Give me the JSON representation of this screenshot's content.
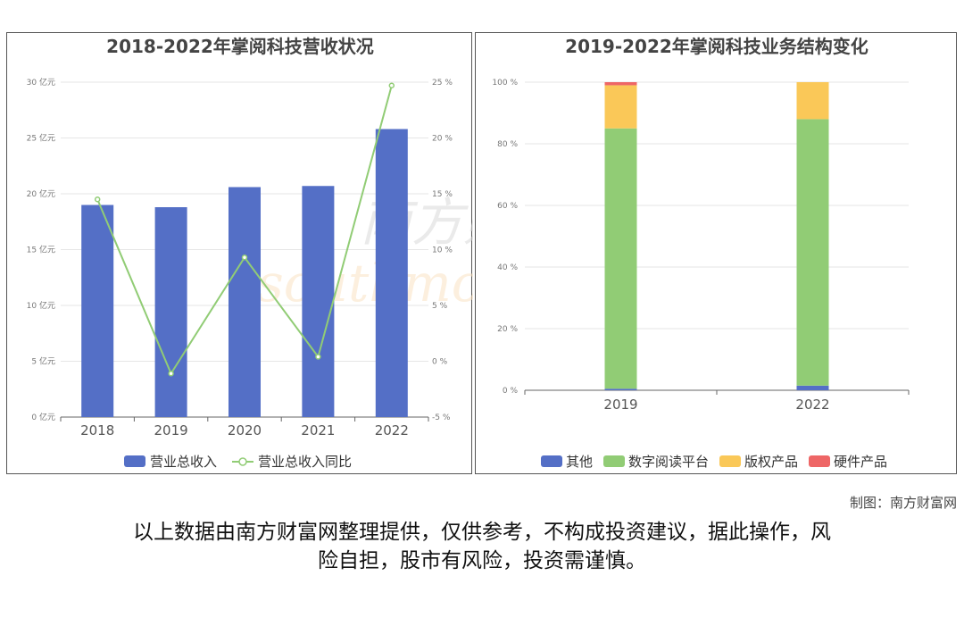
{
  "chart_data": [
    {
      "type": "bar+line",
      "title": "2018-2022年掌阅科技营收状况",
      "categories": [
        "2018",
        "2019",
        "2020",
        "2021",
        "2022"
      ],
      "series": [
        {
          "name": "营业总收入",
          "type": "bar",
          "axis": "left",
          "unit": "亿元",
          "values": [
            19.0,
            18.8,
            20.6,
            20.7,
            25.8
          ]
        },
        {
          "name": "营业总收入同比",
          "type": "line",
          "axis": "right",
          "unit": "%",
          "values": [
            14.5,
            -1.1,
            9.3,
            0.4,
            24.7
          ]
        }
      ],
      "y_left": {
        "ticks": [
          "0 亿元",
          "5 亿元",
          "10 亿元",
          "15 亿元",
          "20 亿元",
          "25 亿元",
          "30 亿元"
        ],
        "ylim": [
          0,
          30
        ]
      },
      "y_right": {
        "ticks": [
          "-5 %",
          "0 %",
          "5 %",
          "10 %",
          "15 %",
          "20 %",
          "25 %"
        ],
        "ylim": [
          -5,
          25
        ]
      },
      "grid": true,
      "legend_position": "bottom",
      "colors": {
        "bar": "#546fc6",
        "line": "#91cc75"
      }
    },
    {
      "type": "stacked-bar",
      "title": "2019-2022年掌阅科技业务结构变化",
      "categories": [
        "2019",
        "2022"
      ],
      "series": [
        {
          "name": "其他",
          "values": [
            0.5,
            1.5
          ]
        },
        {
          "name": "数字阅读平台",
          "values": [
            84.5,
            86.5
          ]
        },
        {
          "name": "版权产品",
          "values": [
            14.0,
            12.0
          ]
        },
        {
          "name": "硬件产品",
          "values": [
            1.0,
            0.0
          ]
        }
      ],
      "y": {
        "ticks": [
          "0 %",
          "20 %",
          "40 %",
          "60 %",
          "80 %",
          "100 %"
        ],
        "ylim": [
          0,
          100
        ]
      },
      "grid": true,
      "legend_position": "bottom",
      "colors": [
        "#546fc6",
        "#91cc75",
        "#fac858",
        "#ee6666"
      ]
    }
  ],
  "watermark": {
    "cn": "南方财富网",
    "en": "southmoney.com"
  },
  "credit": "制图：南方财富网",
  "disclaimer": [
    "以上数据由南方财富网整理提供，仅供参考，不构成投资建议，据此操作，风",
    "险自担，股市有风险，投资需谨慎。"
  ]
}
